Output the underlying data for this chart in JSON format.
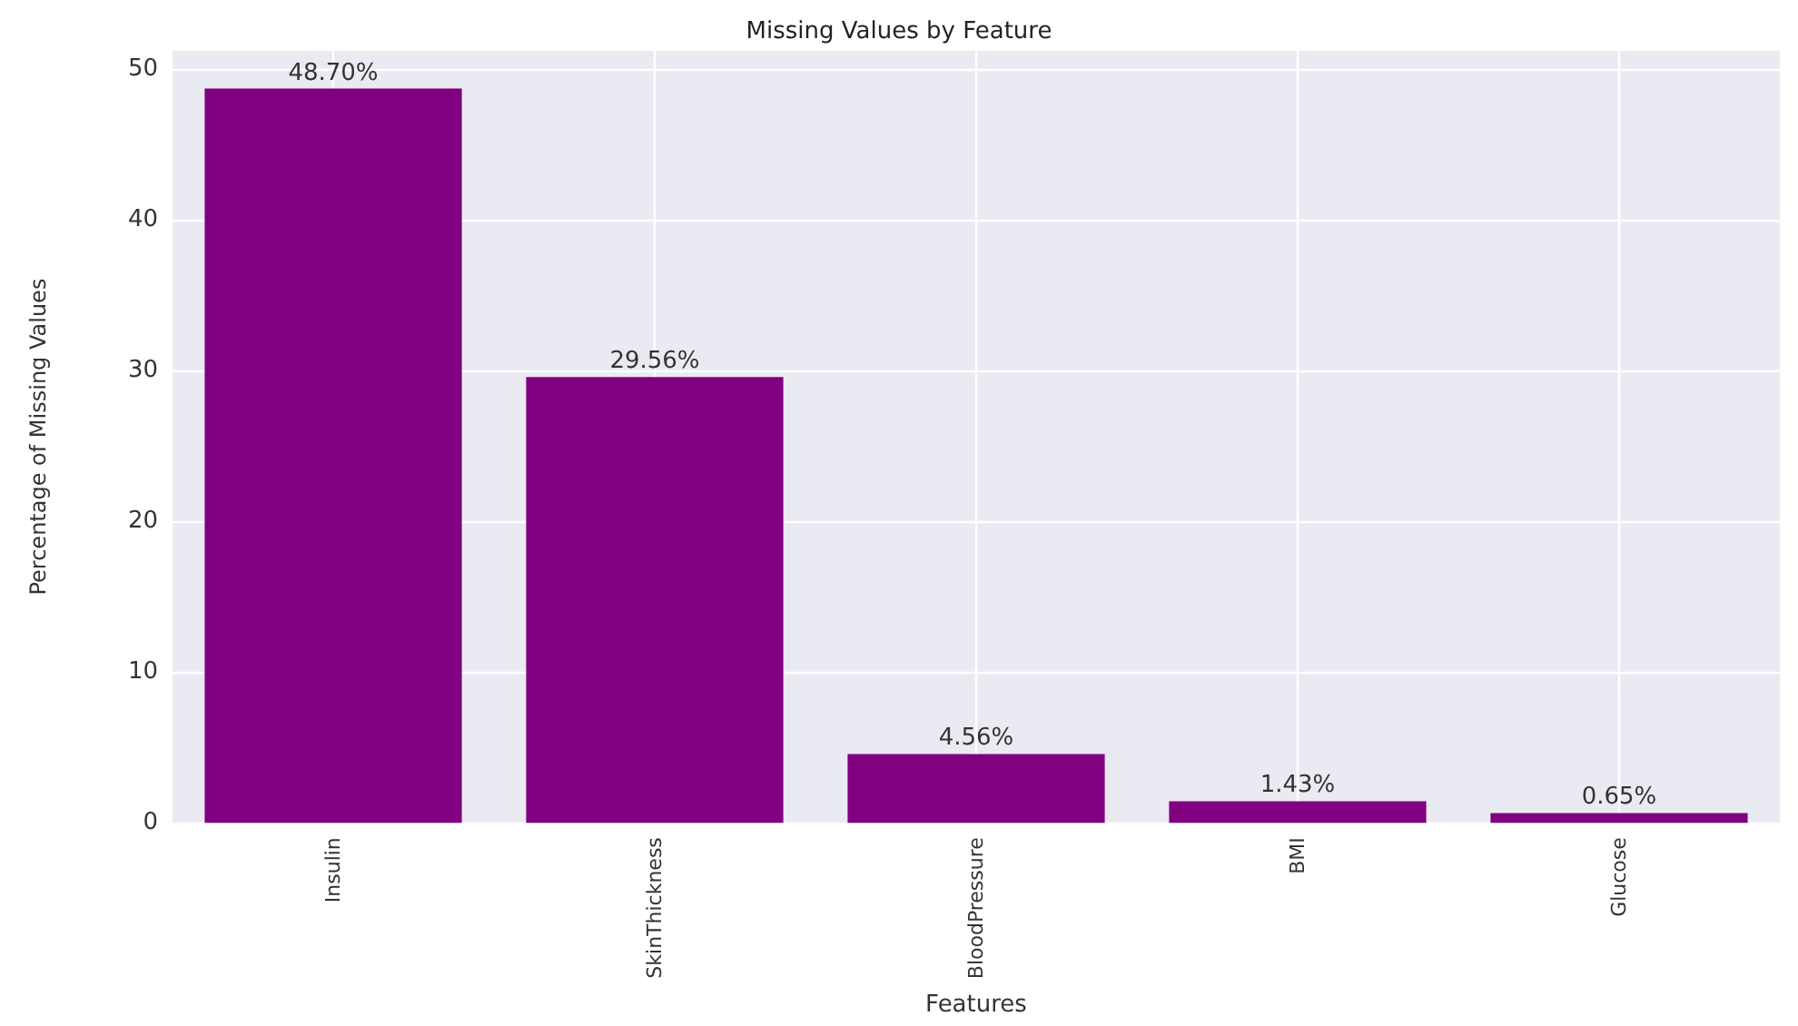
{
  "chart_data": {
    "type": "bar",
    "title": "Missing Values by Feature",
    "xlabel": "Features",
    "ylabel": "Percentage of Missing Values",
    "categories": [
      "Insulin",
      "SkinThickness",
      "BloodPressure",
      "BMI",
      "Glucose"
    ],
    "values": [
      48.7,
      29.56,
      4.56,
      1.43,
      0.65
    ],
    "value_labels": [
      "48.70%",
      "29.56%",
      "4.56%",
      "1.43%",
      "0.65%"
    ],
    "color": "#800080",
    "ylim": [
      0,
      51.2
    ],
    "yticks": [
      0,
      10,
      20,
      30,
      40,
      50
    ],
    "grid": true
  }
}
